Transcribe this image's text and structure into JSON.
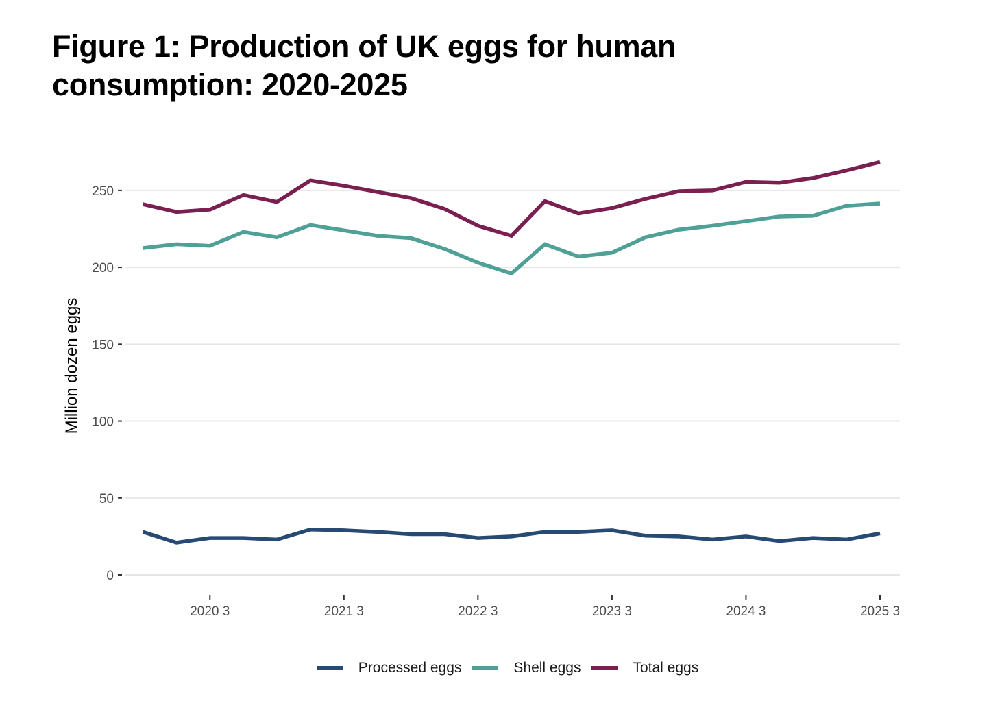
{
  "title_lines": [
    "Figure 1: Production of UK eggs for human",
    "consumption: 2020-2025"
  ],
  "chart_data": {
    "type": "line",
    "title": "Figure 1: Production of UK eggs for human consumption: 2020-2025",
    "xlabel": "",
    "ylabel": "Million dozen eggs",
    "x": [
      "2020 Q1",
      "2020 Q2",
      "2020 Q3",
      "2020 Q4",
      "2021 Q1",
      "2021 Q2",
      "2021 Q3",
      "2021 Q4",
      "2022 Q1",
      "2022 Q2",
      "2022 Q3",
      "2022 Q4",
      "2023 Q1",
      "2023 Q2",
      "2023 Q3",
      "2023 Q4",
      "2024 Q1",
      "2024 Q2",
      "2024 Q3",
      "2024 Q4",
      "2025 Q1",
      "2025 Q2",
      "2025 Q3"
    ],
    "x_ticks": [
      {
        "index": 2,
        "label": "2020 3"
      },
      {
        "index": 6,
        "label": "2021 3"
      },
      {
        "index": 10,
        "label": "2022 3"
      },
      {
        "index": 14,
        "label": "2023 3"
      },
      {
        "index": 18,
        "label": "2024 3"
      },
      {
        "index": 22,
        "label": "2025 3"
      }
    ],
    "y_ticks": [
      0,
      50,
      100,
      150,
      200,
      250
    ],
    "ylim": [
      0,
      268.5
    ],
    "grid": "horizontal",
    "legend_position": "bottom",
    "series": [
      {
        "name": "Processed eggs",
        "color": "#264a73",
        "values": [
          28,
          21,
          24,
          24,
          23,
          29.5,
          29,
          28,
          26.5,
          26.5,
          24,
          25,
          28,
          28,
          29,
          25.5,
          25,
          23,
          25,
          22,
          24,
          23,
          27
        ]
      },
      {
        "name": "Shell eggs",
        "color": "#4fa197",
        "values": [
          212.5,
          215,
          214,
          223,
          219.5,
          227.5,
          224,
          220.5,
          219,
          212,
          203,
          196,
          215,
          207,
          209.5,
          219.5,
          224.5,
          227,
          230,
          233,
          233.5,
          240,
          241.5
        ]
      },
      {
        "name": "Total eggs",
        "color": "#7a1f50",
        "values": [
          241,
          236,
          237.5,
          247,
          242.5,
          256.5,
          253,
          249,
          245,
          238,
          227,
          220.5,
          243,
          235,
          238.5,
          244.5,
          249.5,
          250,
          255.5,
          255,
          258,
          263,
          268.5
        ]
      }
    ]
  }
}
